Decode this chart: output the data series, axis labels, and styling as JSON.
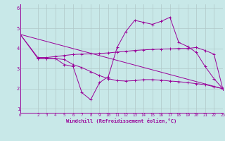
{
  "xlabel": "Windchill (Refroidissement éolien,°C)",
  "bg_color": "#c8e8e8",
  "line_color": "#990099",
  "grid_color": "#b0c8c8",
  "xlim": [
    0,
    23
  ],
  "ylim": [
    0.8,
    6.2
  ],
  "xticks": [
    0,
    2,
    3,
    4,
    5,
    6,
    7,
    8,
    9,
    10,
    11,
    12,
    13,
    14,
    15,
    16,
    17,
    18,
    19,
    20,
    21,
    22,
    23
  ],
  "yticks": [
    1,
    2,
    3,
    4,
    5,
    6
  ],
  "series": [
    {
      "x": [
        0,
        2,
        3,
        4,
        5,
        6,
        7,
        8,
        9,
        10,
        11,
        12,
        13,
        14,
        15,
        16,
        17,
        18,
        19,
        20,
        21,
        22,
        23
      ],
      "y": [
        4.7,
        3.5,
        3.5,
        3.5,
        3.2,
        3.1,
        1.8,
        1.45,
        2.3,
        2.6,
        4.05,
        4.85,
        5.4,
        5.3,
        5.2,
        5.35,
        5.55,
        4.3,
        4.1,
        3.8,
        3.1,
        2.5,
        2.0
      ]
    },
    {
      "x": [
        0,
        2,
        3,
        4,
        5,
        6,
        7,
        8,
        9,
        10,
        11,
        12,
        13,
        14,
        15,
        16,
        17,
        18,
        19,
        20,
        21,
        22,
        23
      ],
      "y": [
        4.7,
        3.55,
        3.55,
        3.6,
        3.65,
        3.7,
        3.72,
        3.73,
        3.75,
        3.78,
        3.82,
        3.86,
        3.9,
        3.93,
        3.95,
        3.97,
        3.98,
        4.0,
        4.0,
        4.05,
        3.9,
        3.72,
        2.0
      ]
    },
    {
      "x": [
        0,
        23
      ],
      "y": [
        4.7,
        2.0
      ]
    },
    {
      "x": [
        2,
        3,
        4,
        5,
        6,
        7,
        8,
        9,
        10,
        11,
        12,
        13,
        14,
        15,
        16,
        17,
        18,
        19,
        20,
        21,
        22,
        23
      ],
      "y": [
        3.5,
        3.5,
        3.5,
        3.45,
        3.2,
        3.05,
        2.85,
        2.65,
        2.5,
        2.4,
        2.38,
        2.4,
        2.45,
        2.45,
        2.42,
        2.38,
        2.35,
        2.3,
        2.25,
        2.2,
        2.1,
        2.0
      ]
    }
  ]
}
